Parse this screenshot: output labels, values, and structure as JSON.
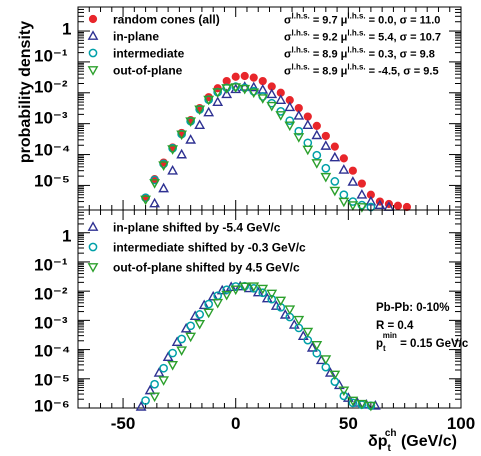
{
  "chart_data": [
    {
      "type": "scatter",
      "ylabel": "probability density",
      "yscale": "log",
      "xlim": [
        -70,
        100
      ],
      "ylim": [
        1.6e-06,
        6
      ],
      "y_tick_labels": [
        "10⁻⁵",
        "10⁻⁴",
        "10⁻³",
        "10⁻²",
        "10⁻¹",
        "1"
      ],
      "series": [
        {
          "name": "random cones (all)",
          "marker": "filled-circle",
          "color": "#e8262b",
          "stats": {
            "sigma_lhs": "9.7",
            "mu_lhs": "0.0",
            "sigma": "11.0"
          },
          "x": [
            -40,
            -36,
            -32,
            -28,
            -24,
            -20,
            -16,
            -12,
            -8,
            -4,
            0,
            4,
            8,
            12,
            16,
            20,
            24,
            28,
            32,
            36,
            40,
            44,
            48,
            52,
            56,
            60,
            64,
            68,
            72,
            76
          ],
          "y": [
            4e-06,
            1.6e-05,
            5.5e-05,
            0.00017,
            0.0005,
            0.0013,
            0.0032,
            0.0072,
            0.014,
            0.024,
            0.033,
            0.035,
            0.031,
            0.024,
            0.016,
            0.01,
            0.0058,
            0.0032,
            0.0017,
            0.00085,
            0.0004,
            0.00018,
            7.5e-05,
            3e-05,
            1.15e-05,
            5e-06,
            3e-06,
            2.5e-06,
            2.2e-06,
            2e-06
          ]
        },
        {
          "name": "in-plane",
          "marker": "open-triangle-up",
          "color": "#2e3192",
          "stats": {
            "sigma_lhs": "9.2",
            "mu_lhs": "5.4",
            "sigma": "10.7"
          },
          "x": [
            -36,
            -32,
            -28,
            -24,
            -20,
            -16,
            -12,
            -8,
            -4,
            0,
            4,
            8,
            12,
            16,
            20,
            24,
            28,
            32,
            36,
            40,
            44,
            48,
            52,
            56,
            60,
            64,
            68
          ],
          "y": [
            2.6e-06,
            8e-06,
            3e-05,
            0.0001,
            0.0003,
            0.0009,
            0.0023,
            0.005,
            0.009,
            0.013,
            0.0155,
            0.015,
            0.0125,
            0.009,
            0.0058,
            0.0034,
            0.0018,
            0.0009,
            0.00042,
            0.00019,
            8e-05,
            3.2e-05,
            1.3e-05,
            5e-06,
            3e-06,
            2.3e-06,
            2e-06
          ]
        },
        {
          "name": "intermediate",
          "marker": "open-circle",
          "color": "#00a0a8",
          "stats": {
            "sigma_lhs": "8.9",
            "mu_lhs": "0.3",
            "sigma": "9.8"
          },
          "x": [
            -40,
            -36,
            -32,
            -28,
            -24,
            -20,
            -16,
            -12,
            -8,
            -4,
            0,
            4,
            8,
            12,
            16,
            20,
            24,
            28,
            32,
            36,
            40,
            44,
            48,
            52,
            56,
            60
          ],
          "y": [
            4e-06,
            1.5e-05,
            5e-05,
            0.00016,
            0.00046,
            0.0012,
            0.0029,
            0.006,
            0.0105,
            0.0145,
            0.0158,
            0.0145,
            0.0112,
            0.0076,
            0.0046,
            0.0025,
            0.00125,
            0.00057,
            0.00024,
            9.5e-05,
            3.6e-05,
            1.35e-05,
            5e-06,
            3e-06,
            2.3e-06,
            2e-06
          ]
        },
        {
          "name": "out-of-plane",
          "marker": "open-triangle-down",
          "color": "#2ca02c",
          "stats": {
            "sigma_lhs": "8.9",
            "mu_lhs": "-4.5",
            "sigma": "9.5"
          },
          "x": [
            -40,
            -36,
            -32,
            -28,
            -24,
            -20,
            -16,
            -12,
            -8,
            -4,
            0,
            4,
            8,
            12,
            16,
            20,
            24,
            28,
            32,
            36,
            40,
            44,
            48,
            52,
            56
          ],
          "y": [
            3.5e-06,
            1.2e-05,
            4.5e-05,
            0.00015,
            0.00045,
            0.0012,
            0.0029,
            0.006,
            0.0105,
            0.0142,
            0.0152,
            0.0135,
            0.0103,
            0.0067,
            0.0038,
            0.0019,
            0.00088,
            0.00037,
            0.000145,
            5.3e-05,
            1.9e-05,
            6.8e-06,
            3e-06,
            2.3e-06,
            2e-06
          ]
        }
      ]
    },
    {
      "type": "scatter",
      "xlabel_main": "δp",
      "xlabel_sub": "t",
      "xlabel_sup": "ch",
      "xlabel_unit": " (GeV/c)",
      "yscale": "log",
      "xlim": [
        -70,
        100
      ],
      "ylim": [
        1e-06,
        6
      ],
      "x_ticks": [
        -50,
        0,
        50,
        100
      ],
      "x_tick_labels": [
        "-50",
        "0",
        "50",
        "100"
      ],
      "y_tick_labels": [
        "10⁻⁶",
        "10⁻⁵",
        "10⁻⁴",
        "10⁻³",
        "10⁻²",
        "10⁻¹",
        "1"
      ],
      "annotation": {
        "line1": "Pb-Pb: 0-10%",
        "line2": "R = 0.4",
        "line3_main": "p",
        "line3_sub": "t",
        "line3_sup": "min",
        "line3_rest": " = 0.15 GeV/c"
      },
      "series": [
        {
          "name": "in-plane shifted by -5.4 GeV/c",
          "marker": "open-triangle-up",
          "color": "#2e3192",
          "x": [
            -42,
            -38,
            -34,
            -30,
            -26,
            -22,
            -18,
            -14,
            -10,
            -6,
            -2,
            2,
            6,
            10,
            14,
            18,
            22,
            26,
            30,
            34,
            38,
            42,
            46,
            50,
            54,
            58,
            62
          ],
          "y": [
            1.1e-06,
            4e-06,
            1.6e-05,
            5.5e-05,
            0.00018,
            0.00052,
            0.0014,
            0.0033,
            0.0065,
            0.0105,
            0.0138,
            0.0145,
            0.0125,
            0.009,
            0.0056,
            0.0031,
            0.00155,
            0.0007,
            0.00029,
            0.000115,
            4.3e-05,
            1.6e-05,
            6e-06,
            2.2e-06,
            1.5e-06,
            1.3e-06,
            1.2e-06
          ]
        },
        {
          "name": "intermediate shifted by -0.3 GeV/c",
          "marker": "open-circle",
          "color": "#00a0a8",
          "x": [
            -40,
            -36,
            -32,
            -28,
            -24,
            -20,
            -16,
            -12,
            -8,
            -4,
            0,
            4,
            8,
            12,
            16,
            20,
            24,
            28,
            32,
            36,
            40,
            44,
            48,
            52,
            56,
            60
          ],
          "y": [
            1.8e-06,
            6.5e-06,
            2.3e-05,
            7.6e-05,
            0.00023,
            0.00065,
            0.0016,
            0.0036,
            0.007,
            0.0112,
            0.0145,
            0.0148,
            0.0125,
            0.0088,
            0.0053,
            0.0028,
            0.0013,
            0.00055,
            0.00021,
            7.5e-05,
            2.5e-05,
            8e-06,
            2.6e-06,
            1.5e-06,
            1.3e-06,
            1.2e-06
          ]
        },
        {
          "name": "out-of-plane shifted by 4.5 GeV/c",
          "marker": "open-triangle-down",
          "color": "#2ca02c",
          "x": [
            -36,
            -32,
            -28,
            -24,
            -20,
            -16,
            -12,
            -8,
            -4,
            0,
            4,
            8,
            12,
            16,
            20,
            24,
            28,
            32,
            36,
            40,
            44,
            48,
            52,
            56,
            60
          ],
          "y": [
            2.5e-06,
            9e-06,
            3e-05,
            9.5e-05,
            0.00028,
            0.00076,
            0.00185,
            0.004,
            0.0075,
            0.0115,
            0.0145,
            0.0147,
            0.0122,
            0.0083,
            0.0048,
            0.0024,
            0.00105,
            0.00041,
            0.000145,
            4.7e-05,
            1.4e-05,
            4e-06,
            1.8e-06,
            1.4e-06,
            1.2e-06
          ]
        }
      ]
    }
  ]
}
